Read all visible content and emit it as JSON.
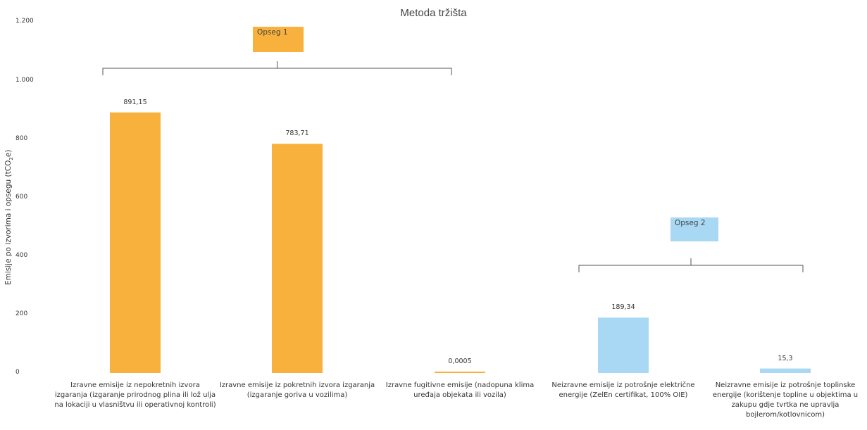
{
  "chart_data": {
    "type": "bar",
    "title": "Metoda tržišta",
    "ylabel": "Emisije po izvorima i opsegu (tCO",
    "ylabel_sub": "2",
    "ylabel_end": "e)",
    "ylim": [
      0,
      1200
    ],
    "yticks": [
      {
        "value": 0,
        "label": "0"
      },
      {
        "value": 200,
        "label": "200"
      },
      {
        "value": 400,
        "label": "400"
      },
      {
        "value": 600,
        "label": "600"
      },
      {
        "value": 800,
        "label": "800"
      },
      {
        "value": 1000,
        "label": "1.000"
      },
      {
        "value": 1200,
        "label": "1.200"
      }
    ],
    "grid": false,
    "categories": [
      "Izravne emisije iz nepokretnih izvora izgaranja (izgaranje prirodnog plina ili lož ulja na lokaciji u vlasništvu ili operativnoj kontroli)",
      "Izravne emisije iz pokretnih izvora izgaranja (izgaranje goriva u vozilima)",
      "Izravne fugitivne emisije  (nadopuna klima uređaja objekata ili vozila)",
      "Neizravne emisije iz potrošnje električne energije (ZelEn certifikat, 100% OIE)",
      "Neizravne emisije iz potrošnje toplinske energije (korištenje topline u objektima u zakupu gdje tvrtka ne upravlja bojlerom/kotlovnicom)"
    ],
    "values": [
      891.15,
      783.71,
      0.0005,
      189.34,
      15.3
    ],
    "value_labels": [
      "891,15",
      "783,71",
      "0,0005",
      "189,34",
      "15,3"
    ],
    "bar_colors": [
      "#f7b13c",
      "#f7b13c",
      "#f7b13c",
      "#a9d8f4",
      "#a9d8f4"
    ],
    "annotations": [
      {
        "label": "Opseg 1",
        "color": "#f7b13c",
        "categories": [
          0,
          1,
          2
        ]
      },
      {
        "label": "Opseg 2",
        "color": "#a9d8f4",
        "categories": [
          3,
          4
        ]
      }
    ]
  }
}
